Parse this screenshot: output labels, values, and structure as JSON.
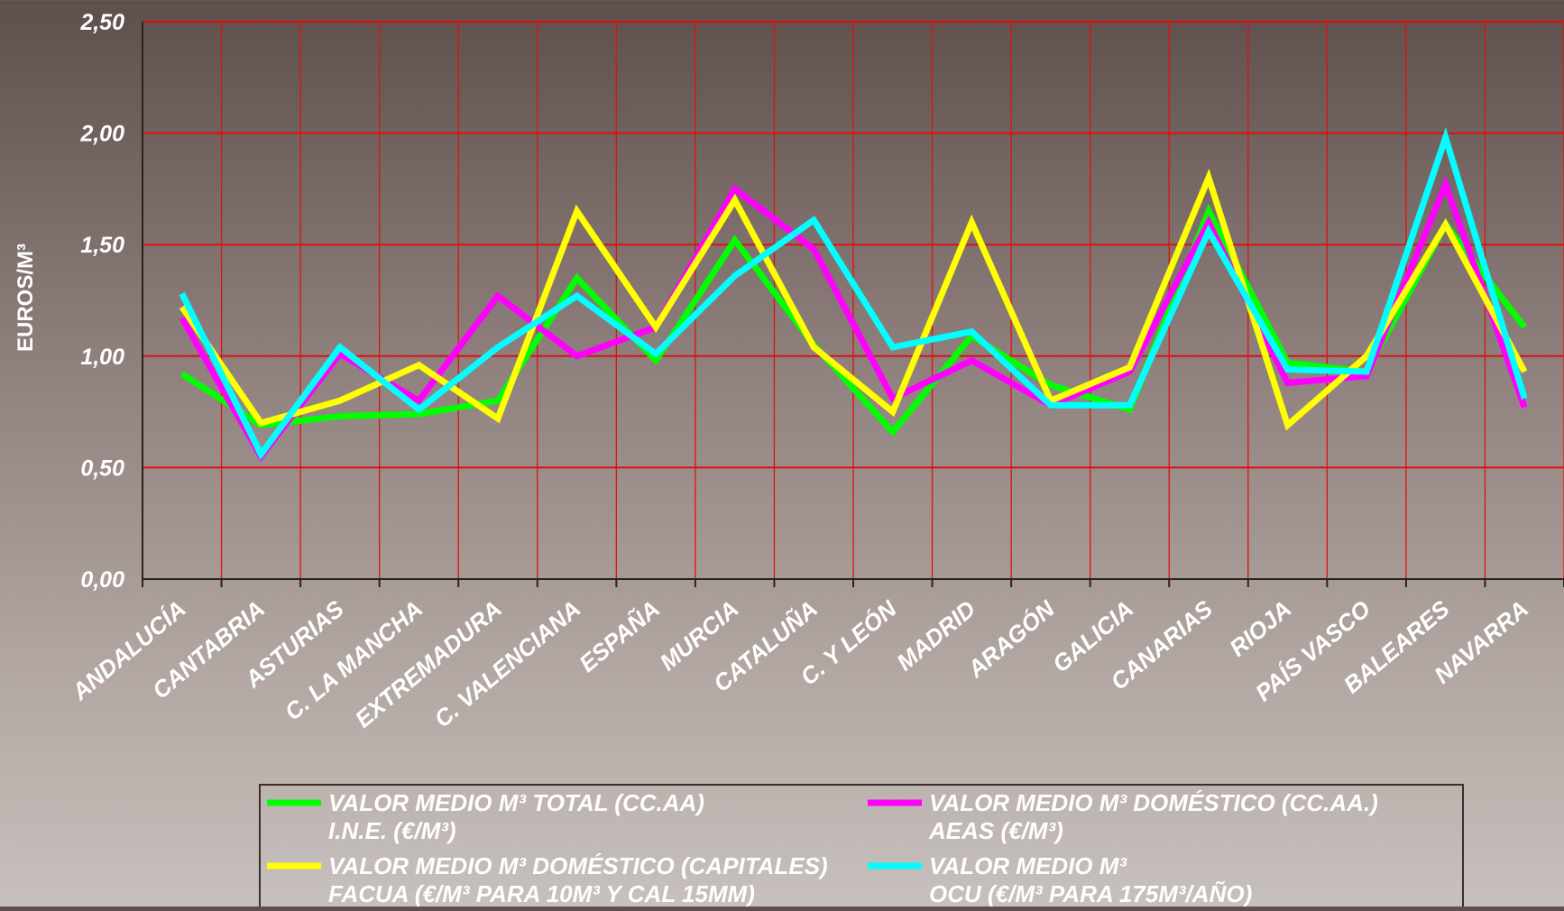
{
  "chart_data": {
    "type": "line",
    "title": "",
    "xlabel": "",
    "ylabel": "EUROS/M³",
    "ylim": [
      0,
      2.5
    ],
    "yticks": [
      "0,00",
      "0,50",
      "1,00",
      "1,50",
      "2,00",
      "2,50"
    ],
    "grid": true,
    "legend_position": "bottom",
    "categories": [
      "ANDALUCÍA",
      "CANTABRIA",
      "ASTURIAS",
      "C. LA MANCHA",
      "EXTREMADURA",
      "C. VALENCIANA",
      "ESPAÑA",
      "MURCIA",
      "CATALUÑA",
      "C. Y LEÓN",
      "MADRID",
      "ARAGÓN",
      "GALICIA",
      "CANARIAS",
      "RIOJA",
      "PAÍS VASCO",
      "BALEARES",
      "NAVARRA"
    ],
    "series": [
      {
        "name": "VALOR MEDIO M³ TOTAL (CC.AA) I.N.E. (€/M³)",
        "legend_lines": [
          "VALOR MEDIO M³ TOTAL (CC.AA)",
          "I.N.E. (€/M³)"
        ],
        "color": "#00ff00",
        "values": [
          0.92,
          0.69,
          0.73,
          0.74,
          0.8,
          1.35,
          0.98,
          1.52,
          1.05,
          0.66,
          1.09,
          0.87,
          0.76,
          1.65,
          0.97,
          0.93,
          1.59,
          1.13
        ]
      },
      {
        "name": "VALOR MEDIO M³ DOMÉSTICO (CC.AA.) AEAS (€/M³)",
        "legend_lines": [
          "VALOR MEDIO M³ DOMÉSTICO (CC.AA.)",
          "AEAS (€/M³)"
        ],
        "color": "#ff00ff",
        "values": [
          1.17,
          0.55,
          1.01,
          0.8,
          1.27,
          1.0,
          1.13,
          1.75,
          1.48,
          0.81,
          0.98,
          0.78,
          0.93,
          1.6,
          0.88,
          0.91,
          1.77,
          0.77
        ]
      },
      {
        "name": "VALOR MEDIO M³ DOMÉSTICO (CAPITALES) FACUA (€/M³ PARA 10M³ Y CAL 15MM)",
        "legend_lines": [
          "VALOR MEDIO M³ DOMÉSTICO (CAPITALES)",
          "FACUA (€/M³ PARA 10M³ Y CAL 15MM)"
        ],
        "color": "#ffff00",
        "values": [
          1.22,
          0.7,
          0.8,
          0.96,
          0.72,
          1.65,
          1.13,
          1.7,
          1.04,
          0.75,
          1.6,
          0.8,
          0.95,
          1.8,
          0.69,
          1.0,
          1.59,
          0.93
        ]
      },
      {
        "name": "VALOR MEDIO M³ OCU (€/M³ PARA 175M³/AÑO)",
        "legend_lines": [
          "VALOR MEDIO M³",
          "OCU (€/M³ PARA 175M³/AÑO)"
        ],
        "color": "#00ffff",
        "values": [
          1.28,
          0.56,
          1.04,
          0.76,
          1.04,
          1.27,
          1.01,
          1.36,
          1.61,
          1.04,
          1.11,
          0.78,
          0.78,
          1.56,
          0.94,
          0.93,
          1.98,
          0.81
        ]
      }
    ]
  }
}
